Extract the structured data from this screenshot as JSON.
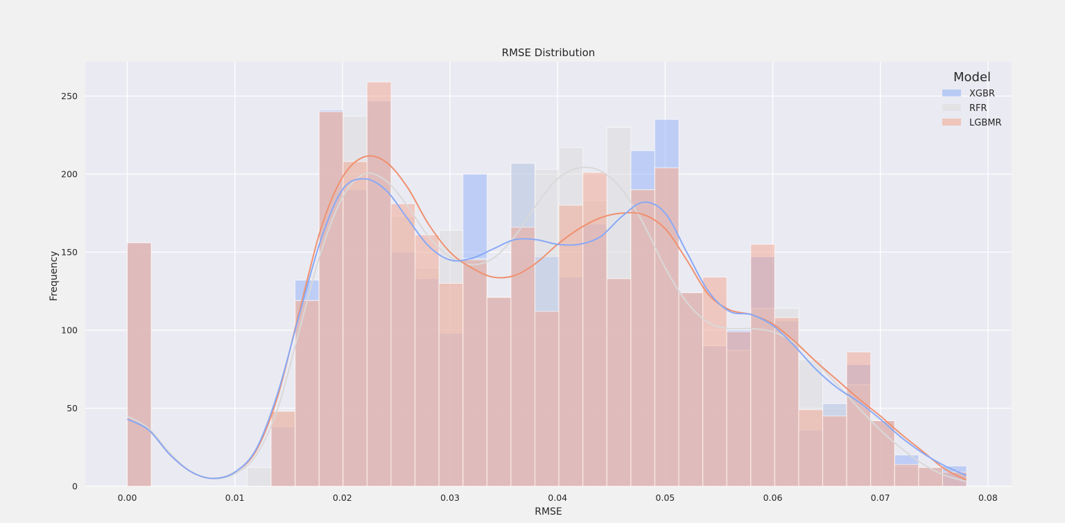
{
  "chart_data": {
    "type": "histogram",
    "title": "RMSE Distribution",
    "xlabel": "RMSE",
    "ylabel": "Frequency",
    "xlim": [
      -0.0039,
      0.0822
    ],
    "ylim": [
      0,
      272
    ],
    "xticks": [
      0.0,
      0.01,
      0.02,
      0.03,
      0.04,
      0.05,
      0.06,
      0.07,
      0.08
    ],
    "xtick_labels": [
      "0.00",
      "0.01",
      "0.02",
      "0.03",
      "0.04",
      "0.05",
      "0.06",
      "0.07",
      "0.08"
    ],
    "yticks": [
      0,
      50,
      100,
      150,
      200,
      250
    ],
    "ytick_labels": [
      "0",
      "50",
      "100",
      "150",
      "200",
      "250"
    ],
    "grid": true,
    "legend": {
      "title": "Model",
      "position": "top-right"
    },
    "bin_start": 0.0,
    "bin_width": 0.002229,
    "bins": 35,
    "series": [
      {
        "name": "XGBR",
        "color": "#8fb0f8",
        "values": [
          156,
          0,
          0,
          0,
          0,
          0,
          38,
          132,
          241,
          190,
          247,
          150,
          133,
          98,
          200,
          121,
          207,
          147,
          134,
          168,
          133,
          215,
          235,
          124,
          90,
          100,
          147,
          106,
          36,
          53,
          78,
          42,
          20,
          12,
          13
        ],
        "kde": [
          [
            0.0,
            43
          ],
          [
            0.002,
            36
          ],
          [
            0.004,
            20
          ],
          [
            0.006,
            9
          ],
          [
            0.008,
            5
          ],
          [
            0.01,
            9
          ],
          [
            0.012,
            24
          ],
          [
            0.014,
            60
          ],
          [
            0.016,
            110
          ],
          [
            0.018,
            158
          ],
          [
            0.02,
            190
          ],
          [
            0.022,
            197
          ],
          [
            0.024,
            190
          ],
          [
            0.026,
            172
          ],
          [
            0.028,
            154
          ],
          [
            0.03,
            145
          ],
          [
            0.032,
            146
          ],
          [
            0.034,
            152
          ],
          [
            0.036,
            158
          ],
          [
            0.038,
            158
          ],
          [
            0.04,
            155
          ],
          [
            0.042,
            155
          ],
          [
            0.044,
            160
          ],
          [
            0.046,
            173
          ],
          [
            0.048,
            182
          ],
          [
            0.05,
            175
          ],
          [
            0.052,
            150
          ],
          [
            0.054,
            125
          ],
          [
            0.056,
            112
          ],
          [
            0.058,
            110
          ],
          [
            0.06,
            103
          ],
          [
            0.062,
            90
          ],
          [
            0.064,
            75
          ],
          [
            0.066,
            63
          ],
          [
            0.068,
            54
          ],
          [
            0.07,
            43
          ],
          [
            0.072,
            31
          ],
          [
            0.074,
            21
          ],
          [
            0.076,
            13
          ],
          [
            0.078,
            7
          ]
        ]
      },
      {
        "name": "RFR",
        "color": "#dcdcdc",
        "values": [
          156,
          0,
          0,
          0,
          0,
          12,
          48,
          119,
          240,
          237,
          247,
          173,
          140,
          164,
          146,
          121,
          207,
          203,
          217,
          183,
          230,
          190,
          204,
          124,
          90,
          87,
          114,
          114,
          81,
          53,
          65,
          42,
          13,
          12,
          0
        ],
        "kde": [
          [
            0.0,
            45
          ],
          [
            0.002,
            37
          ],
          [
            0.004,
            21
          ],
          [
            0.006,
            9
          ],
          [
            0.008,
            5
          ],
          [
            0.01,
            8
          ],
          [
            0.012,
            20
          ],
          [
            0.014,
            50
          ],
          [
            0.016,
            100
          ],
          [
            0.018,
            150
          ],
          [
            0.02,
            185
          ],
          [
            0.022,
            200
          ],
          [
            0.024,
            196
          ],
          [
            0.026,
            180
          ],
          [
            0.028,
            160
          ],
          [
            0.03,
            147
          ],
          [
            0.032,
            142
          ],
          [
            0.034,
            146
          ],
          [
            0.036,
            160
          ],
          [
            0.038,
            180
          ],
          [
            0.04,
            197
          ],
          [
            0.042,
            204
          ],
          [
            0.044,
            202
          ],
          [
            0.046,
            190
          ],
          [
            0.048,
            168
          ],
          [
            0.05,
            140
          ],
          [
            0.052,
            118
          ],
          [
            0.054,
            105
          ],
          [
            0.056,
            101
          ],
          [
            0.058,
            101
          ],
          [
            0.06,
            99
          ],
          [
            0.062,
            92
          ],
          [
            0.064,
            80
          ],
          [
            0.066,
            65
          ],
          [
            0.068,
            50
          ],
          [
            0.07,
            36
          ],
          [
            0.072,
            24
          ],
          [
            0.074,
            14
          ],
          [
            0.076,
            7
          ],
          [
            0.078,
            3
          ]
        ]
      },
      {
        "name": "LGBMR",
        "color": "#f2a48e",
        "values": [
          156,
          0,
          0,
          0,
          0,
          0,
          48,
          119,
          240,
          208,
          259,
          181,
          161,
          130,
          145,
          121,
          166,
          112,
          180,
          201,
          133,
          190,
          204,
          124,
          134,
          99,
          155,
          108,
          49,
          45,
          86,
          42,
          14,
          12,
          9
        ],
        "kde": [
          [
            0.0,
            43
          ],
          [
            0.002,
            36
          ],
          [
            0.004,
            20
          ],
          [
            0.006,
            9
          ],
          [
            0.008,
            5
          ],
          [
            0.01,
            9
          ],
          [
            0.012,
            23
          ],
          [
            0.014,
            58
          ],
          [
            0.016,
            112
          ],
          [
            0.018,
            165
          ],
          [
            0.02,
            198
          ],
          [
            0.022,
            211
          ],
          [
            0.024,
            208
          ],
          [
            0.026,
            192
          ],
          [
            0.028,
            168
          ],
          [
            0.03,
            150
          ],
          [
            0.032,
            140
          ],
          [
            0.034,
            134
          ],
          [
            0.036,
            135
          ],
          [
            0.038,
            143
          ],
          [
            0.04,
            155
          ],
          [
            0.042,
            165
          ],
          [
            0.044,
            172
          ],
          [
            0.046,
            175
          ],
          [
            0.048,
            174
          ],
          [
            0.05,
            165
          ],
          [
            0.052,
            145
          ],
          [
            0.054,
            123
          ],
          [
            0.056,
            113
          ],
          [
            0.058,
            110
          ],
          [
            0.06,
            104
          ],
          [
            0.062,
            93
          ],
          [
            0.064,
            80
          ],
          [
            0.066,
            68
          ],
          [
            0.068,
            56
          ],
          [
            0.07,
            45
          ],
          [
            0.072,
            33
          ],
          [
            0.074,
            22
          ],
          [
            0.076,
            11
          ],
          [
            0.078,
            4
          ]
        ]
      }
    ]
  }
}
